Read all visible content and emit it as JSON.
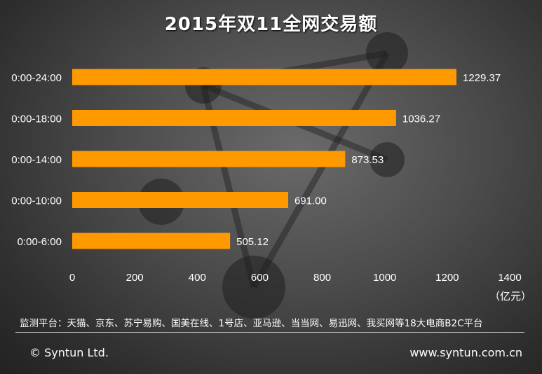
{
  "chart_data": {
    "type": "bar",
    "orientation": "horizontal",
    "title": "2015年双11全网交易额",
    "categories": [
      "0:00-24:00",
      "0:00-18:00",
      "0:00-14:00",
      "0:00-10:00",
      "0:00-6:00"
    ],
    "values": [
      1229.37,
      1036.27,
      873.53,
      691.0,
      505.12
    ],
    "value_labels": [
      "1229.37",
      "1036.27",
      "873.53",
      "691.00",
      "505.12"
    ],
    "xlim": [
      0,
      1400
    ],
    "xticks": [
      "0",
      "200",
      "400",
      "600",
      "800",
      "1000",
      "1200",
      "1400"
    ],
    "unit_label": "（亿元）",
    "grid": false,
    "bar_color": "#ff9900"
  },
  "footnote": "监测平台：天猫、京东、苏宁易购、国美在线、1号店、亚马逊、当当网、易迅网、我买网等18大电商B2C平台",
  "copyright": "© Syntun Ltd.",
  "website": "www.syntun.com.cn"
}
